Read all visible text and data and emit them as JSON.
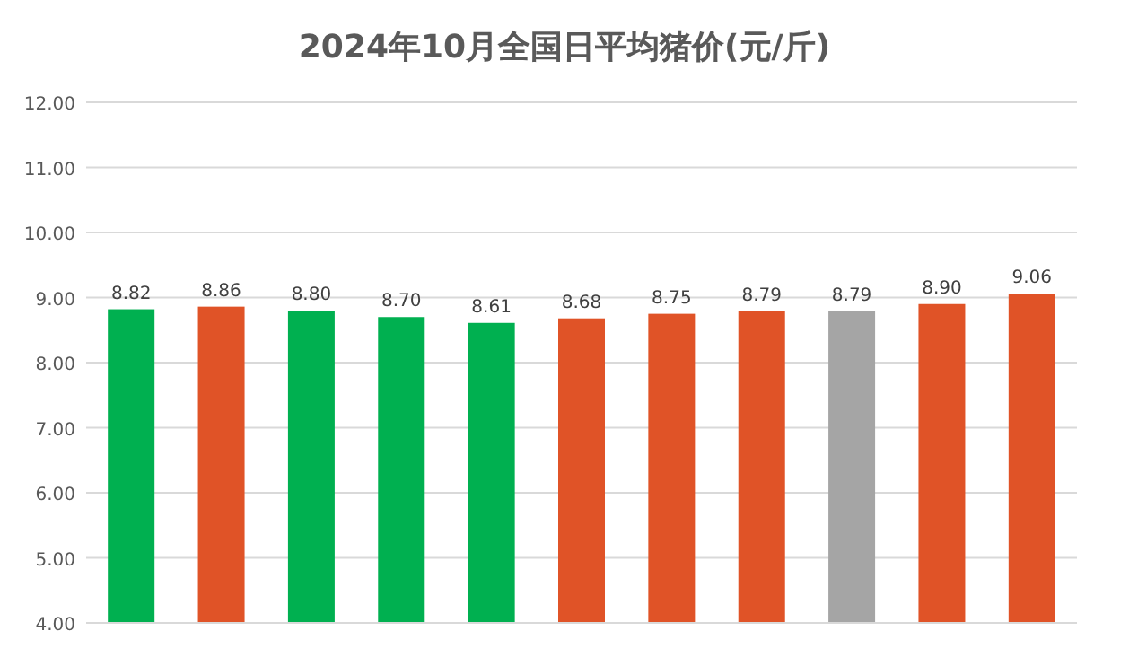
{
  "chart_data": {
    "type": "bar",
    "title": "2024年10月全国日平均猪价(元/斤)",
    "categories": [
      null,
      null,
      null,
      null,
      null,
      null,
      null,
      null,
      null,
      null,
      null
    ],
    "values": [
      8.82,
      8.86,
      8.8,
      8.7,
      8.61,
      8.68,
      8.75,
      8.79,
      8.79,
      8.9,
      9.06
    ],
    "colors": [
      "#00b050",
      "#e05327",
      "#00b050",
      "#00b050",
      "#00b050",
      "#e05327",
      "#e05327",
      "#e05327",
      "#a5a5a5",
      "#e05327",
      "#e05327"
    ],
    "ylim": [
      4,
      12
    ],
    "yticks": [
      {
        "value": 4,
        "label": "4.00"
      },
      {
        "value": 5,
        "label": "5.00"
      },
      {
        "value": 6,
        "label": "6.00"
      },
      {
        "value": 7,
        "label": "7.00"
      },
      {
        "value": 8,
        "label": "8.00"
      },
      {
        "value": 9,
        "label": "9.00"
      },
      {
        "value": 10,
        "label": "10.00"
      },
      {
        "value": 11,
        "label": "11.00"
      },
      {
        "value": 12,
        "label": "12.00"
      }
    ],
    "value_labels": [
      "8.82",
      "8.86",
      "8.80",
      "8.70",
      "8.61",
      "8.68",
      "8.75",
      "8.79",
      "8.79",
      "8.90",
      "9.06"
    ],
    "grid": "y"
  }
}
